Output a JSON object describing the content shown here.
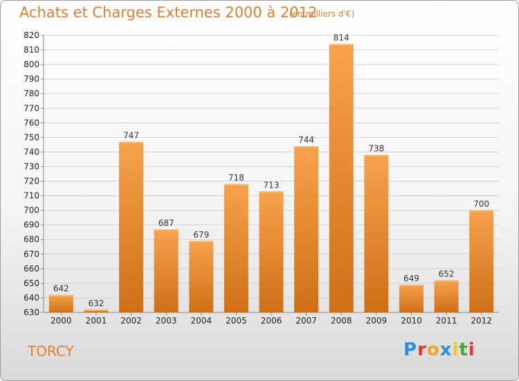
{
  "header": {
    "title": "Achats et Charges Externes 2000 à 2012",
    "subtitle": "(en milliers d'€)"
  },
  "footer": {
    "city": "TORCY",
    "logo": [
      {
        "ch": "P",
        "color": "#2a8fd6"
      },
      {
        "ch": "r",
        "color": "#e8342b"
      },
      {
        "ch": "o",
        "color": "#f5a623"
      },
      {
        "ch": "x",
        "color": "#2a8fd6"
      },
      {
        "ch": "i",
        "color": "#f5c518"
      },
      {
        "ch": "t",
        "color": "#43a83c"
      },
      {
        "ch": "i",
        "color": "#e8342b"
      }
    ]
  },
  "colors": {
    "bar_top": "#f7a24c",
    "bar_bottom": "#cf6f16",
    "grid": "#d3d3d3",
    "accent": "#e07e2e"
  },
  "chart_data": {
    "type": "bar",
    "categories": [
      "2000",
      "2001",
      "2002",
      "2003",
      "2004",
      "2005",
      "2006",
      "2007",
      "2008",
      "2009",
      "2010",
      "2011",
      "2012"
    ],
    "values": [
      642,
      632,
      747,
      687,
      679,
      718,
      713,
      744,
      814,
      738,
      649,
      652,
      700
    ],
    "title": "Achats et Charges Externes 2000 à 2012",
    "subtitle": "(en milliers d'€)",
    "xlabel": "",
    "ylabel": "",
    "ylim": [
      630,
      820
    ],
    "ytick_step": 10,
    "grid": true,
    "legend": "none"
  }
}
